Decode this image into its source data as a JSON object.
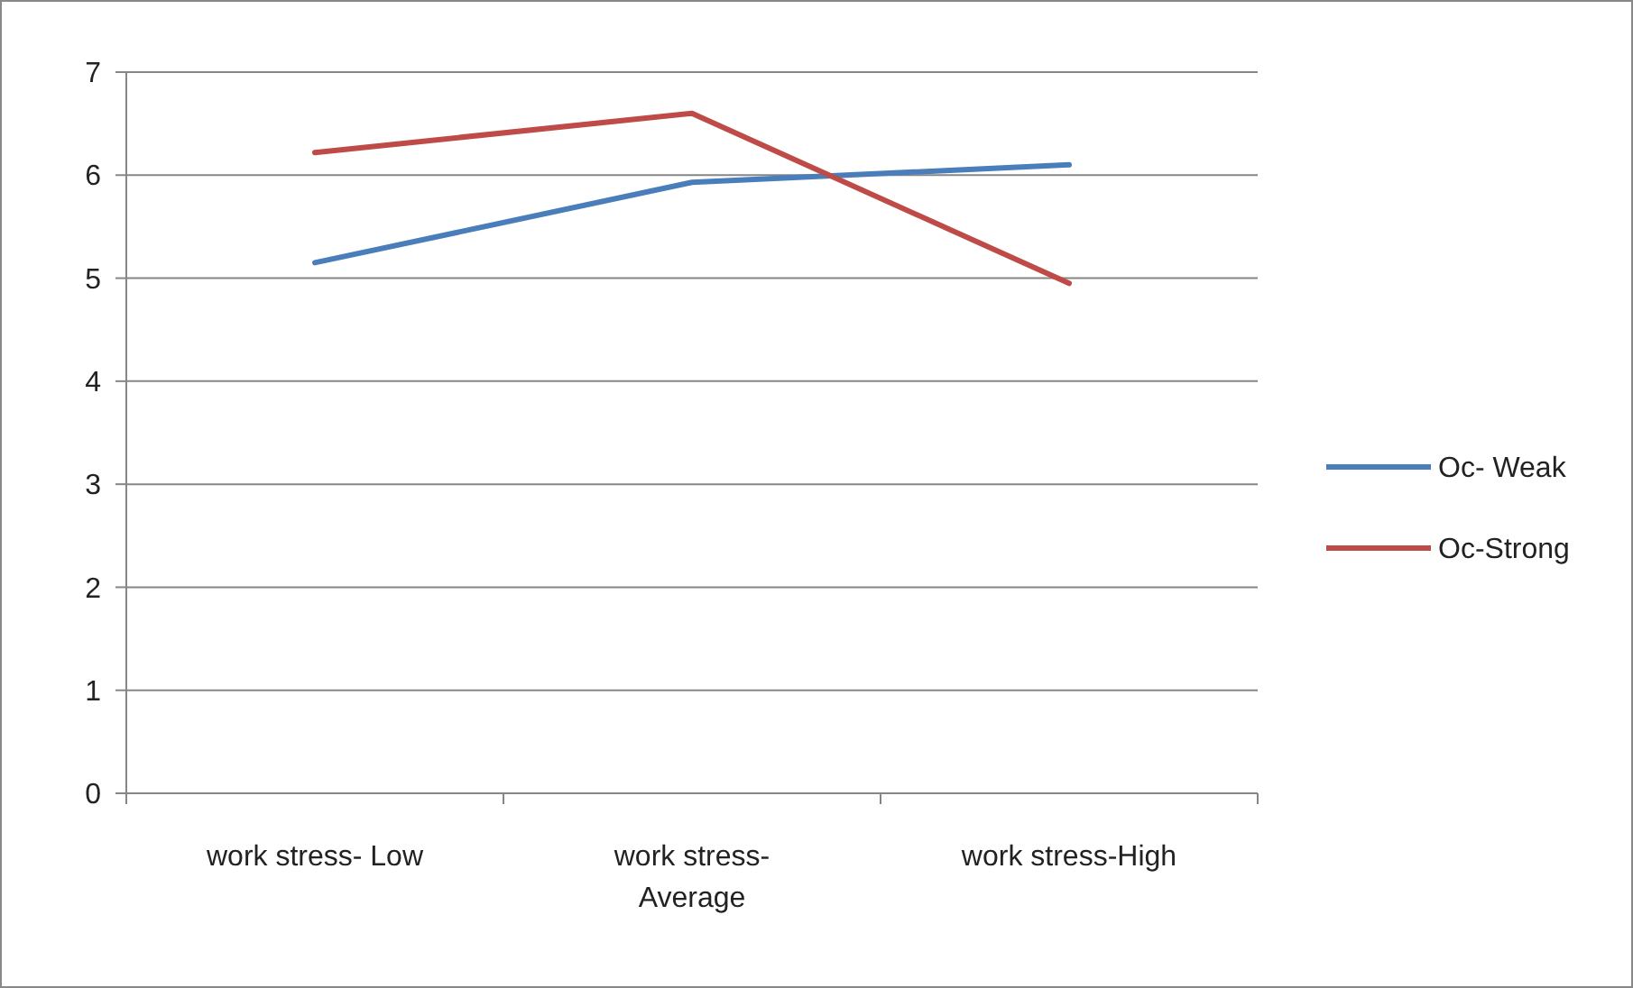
{
  "chart_data": {
    "type": "line",
    "categories": [
      "work stress- Low",
      "work stress-Average",
      "work stress-High"
    ],
    "series": [
      {
        "name": "Oc- Weak",
        "color": "#4a7ebb",
        "values": [
          5.15,
          5.93,
          6.1
        ]
      },
      {
        "name": "Oc-Strong",
        "color": "#be4b48",
        "values": [
          6.22,
          6.6,
          4.95
        ]
      }
    ],
    "ylim": [
      0,
      7
    ],
    "yticks": [
      0,
      1,
      2,
      3,
      4,
      5,
      6,
      7
    ],
    "grid": "y",
    "legend": "right",
    "marker": "none"
  }
}
